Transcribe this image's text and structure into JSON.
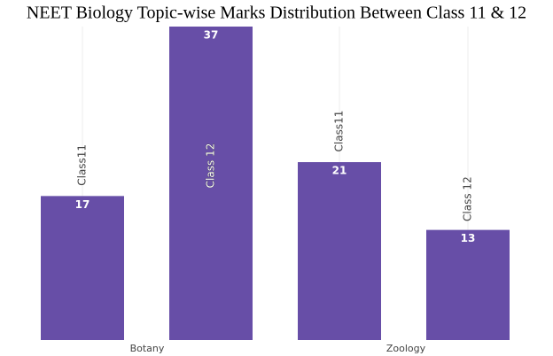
{
  "chart_data": {
    "type": "bar",
    "title": "NEET Biology Topic-wise Marks Distribution Between Class 11 & 12",
    "categories": [
      "Botany",
      "Zoology"
    ],
    "series": [
      {
        "name": "Class11",
        "color": "#674ea7",
        "values": [
          17,
          21
        ]
      },
      {
        "name": "Class 12",
        "color": "#674ea7",
        "values": [
          37,
          13
        ]
      }
    ],
    "grid": true
  }
}
